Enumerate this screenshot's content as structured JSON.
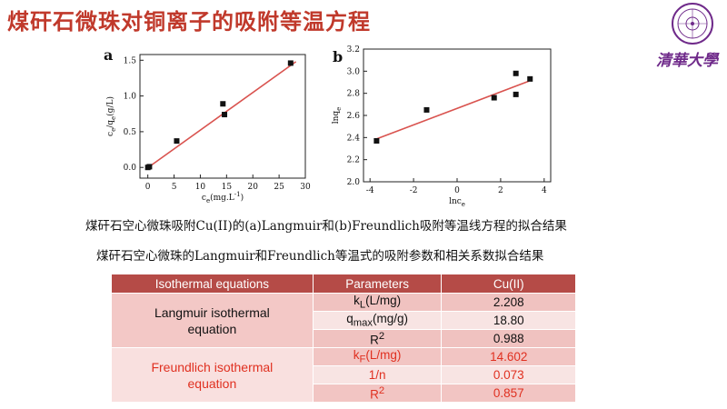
{
  "slide": {
    "title": "煤矸石微珠对铜离子的吸附等温方程",
    "logo_text": "清华大学",
    "logo_seal_text": "清华大学"
  },
  "chart_data": [
    {
      "type": "scatter",
      "panel_label": "a",
      "xlabel": "c",
      "xlabel_sub": "e",
      "xlabel_units": "(mg.L",
      "xlabel_units_sup": "-1",
      "xlabel_units_end": ")",
      "ylabel": "c",
      "ylabel_sub1": "e",
      "ylabel_mid": "/q",
      "ylabel_sub2": "e",
      "ylabel_units": "(g/L)",
      "xlim": [
        -1.5,
        30
      ],
      "ylim": [
        -0.15,
        1.58
      ],
      "xticks": [
        0,
        5,
        10,
        15,
        20,
        25,
        30
      ],
      "yticks": [
        0.0,
        0.5,
        1.0,
        1.5
      ],
      "ytick_labels": [
        "0.0",
        "0.5",
        "1.0",
        "1.5"
      ],
      "points": [
        [
          0.0,
          0.0
        ],
        [
          0.3,
          0.01
        ],
        [
          5.5,
          0.37
        ],
        [
          14.3,
          0.89
        ],
        [
          14.6,
          0.74
        ],
        [
          27.2,
          1.46
        ]
      ],
      "fit_line": [
        [
          -0.3,
          -0.02
        ],
        [
          28.2,
          1.48
        ]
      ],
      "line_color": "#d9534f",
      "marker_color": "#111111"
    },
    {
      "type": "scatter",
      "panel_label": "b",
      "xlabel": "lnc",
      "xlabel_sub": "e",
      "ylabel": "lnq",
      "ylabel_sub": "e",
      "xlim": [
        -4.3,
        4.3
      ],
      "ylim": [
        2.0,
        3.2
      ],
      "xticks": [
        -4,
        -2,
        0,
        2,
        4
      ],
      "yticks": [
        2.0,
        2.2,
        2.4,
        2.6,
        2.8,
        3.0,
        3.2
      ],
      "ytick_labels": [
        "2.0",
        "2.2",
        "2.4",
        "2.6",
        "2.8",
        "3.0",
        "3.2"
      ],
      "points": [
        [
          -3.7,
          2.37
        ],
        [
          -1.4,
          2.65
        ],
        [
          1.7,
          2.76
        ],
        [
          2.7,
          2.98
        ],
        [
          2.7,
          2.79
        ],
        [
          3.35,
          2.93
        ]
      ],
      "fit_line": [
        [
          -3.8,
          2.38
        ],
        [
          3.3,
          2.91
        ]
      ],
      "line_color": "#d9534f",
      "marker_color": "#111111"
    }
  ],
  "captions": {
    "line1": "煤矸石空心微珠吸附Cu(II)的(a)Langmuir和(b)Freundlich吸附等温线方程的拟合结果",
    "line2": "煤矸石空心微珠的Langmuir和Freundlich等温式的吸附参数和相关系数拟合结果"
  },
  "table": {
    "headers": [
      "Isothermal equations",
      "Parameters",
      "Cu(II)"
    ],
    "langmuir": {
      "label": "Langmuir isothermal equation",
      "rows": [
        {
          "param": "k",
          "sub": "L",
          "unit": "(L/mg)",
          "value": "2.208"
        },
        {
          "param": "q",
          "sub": "max",
          "unit": "(mg/g)",
          "value": "18.80"
        },
        {
          "param": "R",
          "sup": "2",
          "value": "0.988"
        }
      ]
    },
    "freundlich": {
      "label": "Freundlich isothermal equation",
      "rows": [
        {
          "param": "k",
          "sub": "F",
          "unit": "(L/mg)",
          "value": "14.602"
        },
        {
          "param": "1/n",
          "value": "0.073"
        },
        {
          "param": "R",
          "sup": "2",
          "value": "0.857"
        }
      ]
    }
  }
}
